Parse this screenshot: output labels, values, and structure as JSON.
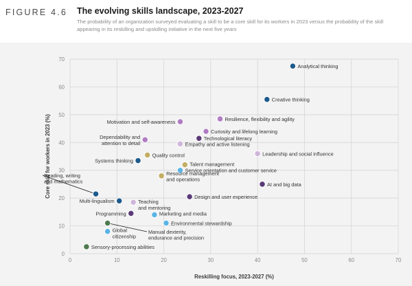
{
  "header": {
    "figure_label": "FIGURE 4.6",
    "title": "The evolving skills landscape, 2023-2027",
    "subtitle": "The probability of an organization surveyed evaluating a skill to be a core skill for its workers in 2023 versus the probability of the skill appearing in its reskilling and upskilling initiative in the next five years"
  },
  "colors": {
    "blue_dark": "#1d5a8c",
    "blue_light": "#5ab4e5",
    "purple_dark": "#5b3a78",
    "purple_light": "#b07cc3",
    "lilac_light": "#d0b5da",
    "olive": "#c2ad62",
    "green": "#4e7a50",
    "grid": "#d2d2d2",
    "panel": "#f3f3f3"
  },
  "chart_data": {
    "type": "scatter",
    "xlabel": "Reskilling focus, 2023-2027 (%)",
    "ylabel": "Core skill for workers in 2023 (%)",
    "xlim": [
      0,
      70
    ],
    "ylim": [
      0,
      70
    ],
    "xticks": [
      0,
      10,
      20,
      30,
      40,
      50,
      60,
      70
    ],
    "yticks": [
      0,
      10,
      20,
      30,
      40,
      50,
      60,
      70
    ],
    "grid": true,
    "points": [
      {
        "label": "Analytical thinking",
        "x": 47.5,
        "y": 67.5,
        "color": "blue_dark"
      },
      {
        "label": "Creative thinking",
        "x": 42.0,
        "y": 55.5,
        "color": "blue_dark"
      },
      {
        "label": "Resilience, flexibility and agility",
        "x": 32.0,
        "y": 48.5,
        "color": "purple_light"
      },
      {
        "label": "Motivation and self-awareness",
        "x": 23.5,
        "y": 47.5,
        "color": "purple_light"
      },
      {
        "label": "Curiosity and lifelong learning",
        "x": 29.0,
        "y": 44.0,
        "color": "purple_light"
      },
      {
        "label": "Technological literacy",
        "x": 27.5,
        "y": 41.5,
        "color": "purple_dark"
      },
      {
        "label": "Dependability and attention to detail",
        "x": 16.0,
        "y": 41.0,
        "color": "purple_light"
      },
      {
        "label": "Empathy and active listening",
        "x": 23.5,
        "y": 39.5,
        "color": "lilac_light"
      },
      {
        "label": "Leadership and social influence",
        "x": 40.0,
        "y": 36.0,
        "color": "lilac_light"
      },
      {
        "label": "Quality control",
        "x": 16.5,
        "y": 35.5,
        "color": "olive"
      },
      {
        "label": "Systems thinking",
        "x": 14.5,
        "y": 33.5,
        "color": "blue_dark"
      },
      {
        "label": "Talent management",
        "x": 24.5,
        "y": 32.0,
        "color": "olive"
      },
      {
        "label": "Service orientation and customer service",
        "x": 23.5,
        "y": 30.0,
        "color": "blue_light"
      },
      {
        "label": "Reading, writing and mathematics",
        "x": 5.5,
        "y": 21.5,
        "color": "blue_dark"
      },
      {
        "label": "Resource management and operations",
        "x": 19.5,
        "y": 28.0,
        "color": "olive"
      },
      {
        "label": "AI and big data",
        "x": 41.0,
        "y": 25.0,
        "color": "purple_dark"
      },
      {
        "label": "Design and user experience",
        "x": 25.5,
        "y": 20.5,
        "color": "purple_dark"
      },
      {
        "label": "Multi-lingualism",
        "x": 10.5,
        "y": 19.0,
        "color": "blue_dark"
      },
      {
        "label": "Teaching and mentoring",
        "x": 13.5,
        "y": 18.5,
        "color": "lilac_light"
      },
      {
        "label": "Programming",
        "x": 13.0,
        "y": 14.5,
        "color": "purple_dark"
      },
      {
        "label": "Marketing and media",
        "x": 18.0,
        "y": 14.0,
        "color": "blue_light"
      },
      {
        "label": "Environmental stewardship",
        "x": 20.5,
        "y": 11.0,
        "color": "blue_light"
      },
      {
        "label": "Manual dexterity, endurance and precision",
        "x": 8.0,
        "y": 11.0,
        "color": "green"
      },
      {
        "label": "Global citizenship",
        "x": 8.0,
        "y": 8.0,
        "color": "blue_light"
      },
      {
        "label": "Sensory-processing abilities",
        "x": 3.5,
        "y": 2.5,
        "color": "green"
      }
    ]
  }
}
